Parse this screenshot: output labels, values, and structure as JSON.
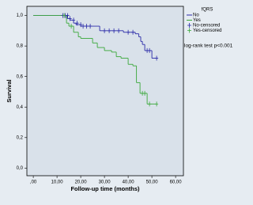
{
  "chart_data": {
    "type": "kaplan-meier",
    "xlabel": "Follow-up time (months)",
    "ylabel": "Survival",
    "legend_title": "fQRS",
    "annotation": "log-rank test p<0.001",
    "xlim": [
      -2.7,
      63.3
    ],
    "ylim": [
      -0.05,
      1.06
    ],
    "xticks": [
      {
        "value": 0,
        "label": ",00"
      },
      {
        "value": 10,
        "label": "10,00"
      },
      {
        "value": 20,
        "label": "20,00"
      },
      {
        "value": 30,
        "label": "30,00"
      },
      {
        "value": 40,
        "label": "40,00"
      },
      {
        "value": 50,
        "label": "50,00"
      },
      {
        "value": 60,
        "label": "60,00"
      }
    ],
    "yticks": [
      {
        "value": 0,
        "label": "0,0"
      },
      {
        "value": 0.2,
        "label": "0,2"
      },
      {
        "value": 0.4,
        "label": "0,4"
      },
      {
        "value": 0.6,
        "label": "0,6"
      },
      {
        "value": 0.8,
        "label": "0,8"
      },
      {
        "value": 1,
        "label": "1,0"
      }
    ],
    "series": [
      {
        "name": "No",
        "color": "#2a2aa8",
        "kind": "step",
        "x": [
          0,
          14.3,
          15.5,
          17,
          18,
          20,
          28,
          38,
          43,
          44.5,
          45.3,
          46,
          47,
          50,
          52
        ],
        "values": [
          1,
          0.98,
          0.97,
          0.95,
          0.94,
          0.93,
          0.9,
          0.89,
          0.88,
          0.86,
          0.83,
          0.81,
          0.77,
          0.72,
          0.72
        ]
      },
      {
        "name": "Yes",
        "color": "#3aa83a",
        "kind": "step",
        "x": [
          0,
          14,
          15,
          17,
          19,
          20,
          25,
          27,
          30,
          33,
          35,
          37,
          40,
          42,
          43.5,
          45,
          48,
          52
        ],
        "values": [
          1,
          0.95,
          0.93,
          0.89,
          0.86,
          0.85,
          0.82,
          0.79,
          0.77,
          0.76,
          0.73,
          0.72,
          0.68,
          0.67,
          0.56,
          0.49,
          0.42,
          0.42
        ]
      },
      {
        "name": "No-censored",
        "color": "#2a2aa8",
        "kind": "censor",
        "x": [
          12.5,
          13.5,
          14.5,
          15.5,
          17,
          18.5,
          20,
          21,
          22.5,
          24,
          30,
          32,
          34,
          36,
          40,
          42,
          48,
          49,
          52
        ],
        "values": [
          1,
          1,
          1,
          0.98,
          0.97,
          0.95,
          0.94,
          0.93,
          0.93,
          0.93,
          0.9,
          0.9,
          0.9,
          0.9,
          0.89,
          0.89,
          0.77,
          0.77,
          0.72
        ]
      },
      {
        "name": "Yes-censored",
        "color": "#3aa83a",
        "kind": "censor",
        "x": [
          13,
          16,
          46,
          47,
          49,
          52
        ],
        "values": [
          1,
          0.93,
          0.49,
          0.49,
          0.42,
          0.42
        ]
      }
    ]
  }
}
